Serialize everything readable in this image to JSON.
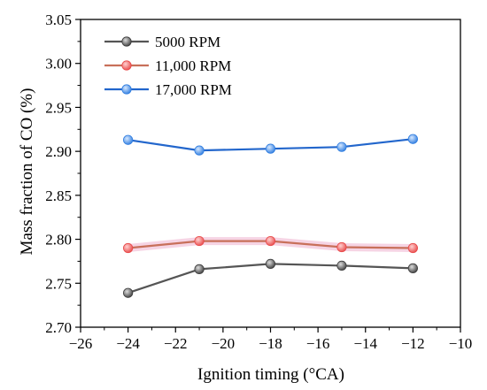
{
  "chart_data": {
    "type": "line",
    "xlabel": "Ignition timing (°CA)",
    "ylabel": "Mass fraction of CO (%)",
    "xlim": [
      -26,
      -10
    ],
    "ylim": [
      2.7,
      3.05
    ],
    "x_ticks": [
      -26,
      -24,
      -22,
      -20,
      -18,
      -16,
      -14,
      -12,
      -10
    ],
    "x_tick_labels": [
      "−26",
      "−24",
      "−22",
      "−20",
      "−18",
      "−16",
      "−14",
      "−12",
      "−10"
    ],
    "y_ticks": [
      2.7,
      2.75,
      2.8,
      2.85,
      2.9,
      2.95,
      3.0,
      3.05
    ],
    "y_tick_labels": [
      "2.70",
      "2.75",
      "2.80",
      "2.85",
      "2.90",
      "2.95",
      "3.00",
      "3.05"
    ],
    "grid": false,
    "legend_position": "top-left",
    "x": [
      -24,
      -21,
      -18,
      -15,
      -12
    ],
    "series": [
      {
        "name": "5000 RPM",
        "values": [
          2.739,
          2.766,
          2.772,
          2.77,
          2.767
        ],
        "color": "#555555",
        "marker_color": "#3d3d3d"
      },
      {
        "name": "11,000 RPM",
        "values": [
          2.79,
          2.798,
          2.798,
          2.791,
          2.79
        ],
        "color": "#c8705a",
        "marker_color": "#e84a4a"
      },
      {
        "name": "17,000 RPM",
        "values": [
          2.913,
          2.901,
          2.903,
          2.905,
          2.914
        ],
        "color": "#2266cc",
        "marker_color": "#2f7de0"
      }
    ]
  }
}
